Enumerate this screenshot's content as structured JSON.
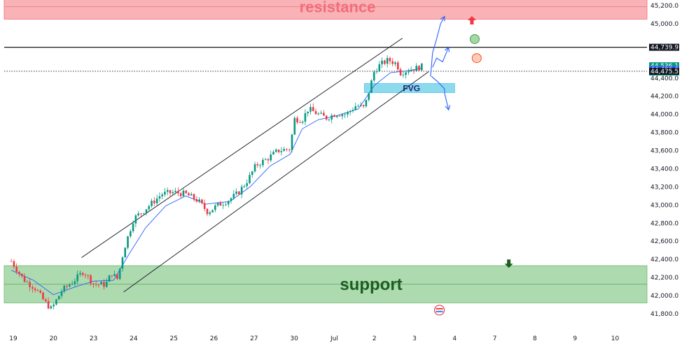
{
  "chart_data": {
    "type": "candlestick",
    "y_range": [
      41750,
      45320
    ],
    "y_ticks": [
      {
        "value": 45200,
        "label": "45,200.0"
      },
      {
        "value": 45000,
        "label": "45,000.0"
      },
      {
        "value": 44400,
        "label": "44,400.0"
      },
      {
        "value": 44200,
        "label": "44,200.0"
      },
      {
        "value": 44000,
        "label": "44,000.0"
      },
      {
        "value": 43800,
        "label": "43,800.0"
      },
      {
        "value": 43600,
        "label": "43,600.0"
      },
      {
        "value": 43400,
        "label": "43,400.0"
      },
      {
        "value": 43200,
        "label": "43,200.0"
      },
      {
        "value": 43000,
        "label": "43,000.0"
      },
      {
        "value": 42800,
        "label": "42,800.0"
      },
      {
        "value": 42600,
        "label": "42,600.0"
      },
      {
        "value": 42400,
        "label": "42,400.0"
      },
      {
        "value": 42200,
        "label": "42,200.0"
      },
      {
        "value": 42000,
        "label": "42,000.0"
      },
      {
        "value": 41800,
        "label": "41,800.0"
      }
    ],
    "x_range": [
      -0.05,
      14.45
    ],
    "x_ticks": [
      {
        "value": 0,
        "label": "19"
      },
      {
        "value": 1,
        "label": "20"
      },
      {
        "value": 2,
        "label": "23"
      },
      {
        "value": 3,
        "label": "24"
      },
      {
        "value": 4,
        "label": "25"
      },
      {
        "value": 5,
        "label": "26"
      },
      {
        "value": 6,
        "label": "27"
      },
      {
        "value": 7,
        "label": "30"
      },
      {
        "value": 8,
        "label": "Jul"
      },
      {
        "value": 9,
        "label": "2"
      },
      {
        "value": 10,
        "label": "3"
      },
      {
        "value": 11,
        "label": "4"
      },
      {
        "value": 12,
        "label": "7"
      },
      {
        "value": 13,
        "label": "8"
      },
      {
        "value": 14,
        "label": "9"
      },
      {
        "value": 15,
        "label": "10"
      }
    ],
    "price_path": [
      [
        -0.05,
        42380
      ],
      [
        0.25,
        42180
      ],
      [
        0.55,
        42080
      ],
      [
        0.75,
        41950
      ],
      [
        0.95,
        41850
      ],
      [
        1.2,
        42050
      ],
      [
        1.55,
        42180
      ],
      [
        1.75,
        42270
      ],
      [
        2.0,
        42130
      ],
      [
        2.3,
        42120
      ],
      [
        2.45,
        42250
      ],
      [
        2.6,
        42180
      ],
      [
        2.75,
        42500
      ],
      [
        3.0,
        42850
      ],
      [
        3.2,
        42920
      ],
      [
        3.4,
        43000
      ],
      [
        3.7,
        43120
      ],
      [
        4.0,
        43140
      ],
      [
        4.3,
        43120
      ],
      [
        4.6,
        43050
      ],
      [
        4.85,
        42920
      ],
      [
        5.1,
        43000
      ],
      [
        5.35,
        43050
      ],
      [
        5.6,
        43130
      ],
      [
        5.85,
        43280
      ],
      [
        6.05,
        43440
      ],
      [
        6.3,
        43500
      ],
      [
        6.6,
        43600
      ],
      [
        6.9,
        43620
      ],
      [
        7.0,
        43950
      ],
      [
        7.2,
        43940
      ],
      [
        7.35,
        44060
      ],
      [
        7.6,
        44000
      ],
      [
        7.8,
        43960
      ],
      [
        8.05,
        44010
      ],
      [
        8.3,
        44000
      ],
      [
        8.55,
        44100
      ],
      [
        8.75,
        44070
      ],
      [
        9.0,
        44480
      ],
      [
        9.15,
        44550
      ],
      [
        9.35,
        44600
      ],
      [
        9.55,
        44560
      ],
      [
        9.65,
        44460
      ],
      [
        9.85,
        44490
      ],
      [
        10.05,
        44510
      ],
      [
        10.2,
        44530
      ]
    ],
    "ma_path": [
      [
        -0.05,
        42280
      ],
      [
        0.5,
        42170
      ],
      [
        1.0,
        42010
      ],
      [
        1.5,
        42090
      ],
      [
        2.0,
        42160
      ],
      [
        2.5,
        42170
      ],
      [
        2.9,
        42470
      ],
      [
        3.3,
        42750
      ],
      [
        3.8,
        42990
      ],
      [
        4.3,
        43100
      ],
      [
        4.8,
        43010
      ],
      [
        5.4,
        43040
      ],
      [
        5.9,
        43200
      ],
      [
        6.4,
        43430
      ],
      [
        6.9,
        43560
      ],
      [
        7.2,
        43840
      ],
      [
        7.6,
        43940
      ],
      [
        8.1,
        43990
      ],
      [
        8.6,
        44060
      ],
      [
        9.0,
        44320
      ],
      [
        9.4,
        44460
      ],
      [
        9.8,
        44480
      ],
      [
        10.2,
        44510
      ]
    ],
    "last_candle_time": 10.2,
    "price_tags": [
      {
        "value": 44739.9,
        "label": "44,739.9",
        "color": "#131722"
      },
      {
        "value": 44536.1,
        "label": "44,536.1",
        "color": "#089981",
        "sub": "10:39"
      },
      {
        "value": 44496.6,
        "label": "44,496.6",
        "color": "#2962ff"
      },
      {
        "value": 44475.5,
        "label": "44,475.5",
        "color": "#131722"
      }
    ],
    "zones": {
      "resistance": {
        "label": "resistance",
        "from": 45050,
        "to": 45330,
        "color": "#f8a5a8"
      },
      "support": {
        "label": "support",
        "from": 41920,
        "to": 42330,
        "color": "#a5d6a7"
      }
    },
    "fvg": {
      "label": "FVG",
      "x0": 8.75,
      "x1": 11.0,
      "y0": 44240,
      "y1": 44340,
      "color": "#7fd6ea"
    },
    "horizontal_line": {
      "value": 44739.9,
      "color": "#000000"
    },
    "dotted_line": {
      "value": 44475.5
    },
    "channel": {
      "upper": [
        [
          1.7,
          42420
        ],
        [
          9.7,
          44840
        ]
      ],
      "lower": [
        [
          2.75,
          42040
        ],
        [
          10.35,
          44470
        ]
      ]
    },
    "scenarios": [
      {
        "name": "up",
        "points": [
          [
            10.4,
            44420
          ],
          [
            10.45,
            44680
          ],
          [
            10.55,
            44830
          ],
          [
            10.65,
            45000
          ],
          [
            10.75,
            45080
          ]
        ]
      },
      {
        "name": "up-pullback",
        "points": [
          [
            10.45,
            44520
          ],
          [
            10.55,
            44620
          ],
          [
            10.7,
            44580
          ],
          [
            10.85,
            44740
          ]
        ]
      },
      {
        "name": "down",
        "points": [
          [
            10.42,
            44420
          ],
          [
            10.6,
            44350
          ],
          [
            10.75,
            44280
          ],
          [
            10.75,
            44230
          ],
          [
            10.85,
            44050
          ]
        ]
      }
    ],
    "markers": {
      "up_arrow": {
        "x": 11.43,
        "y": 45030,
        "color": "#f23645"
      },
      "green_circle": {
        "x": 11.5,
        "y": 44830,
        "color": "#a5d6a7"
      },
      "red_circle": {
        "x": 11.55,
        "y": 44620,
        "color": "#ffccbc"
      },
      "down_arrow": {
        "x": 12.35,
        "y": 42360,
        "color": "#1b5e20"
      },
      "flag": {
        "x": 10.62,
        "y": 41840
      }
    }
  }
}
